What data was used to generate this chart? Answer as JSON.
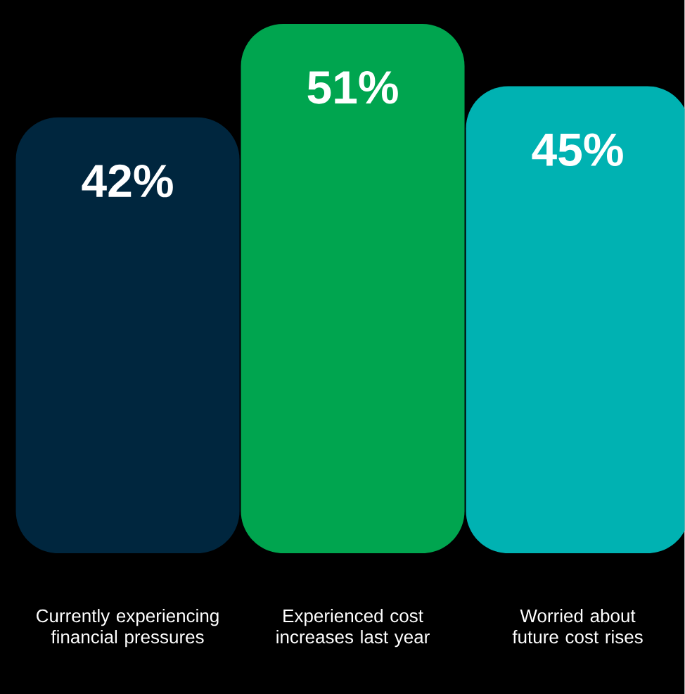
{
  "chart_data": {
    "type": "bar",
    "categories": [
      "Currently experiencing financial pressures",
      "Experienced cost increases last year",
      "Worried about future cost rises"
    ],
    "values": [
      42,
      51,
      45
    ],
    "value_labels": [
      "42%",
      "51%",
      "45%"
    ],
    "colors": [
      "#00263e",
      "#00a54f",
      "#00b2b2"
    ]
  }
}
